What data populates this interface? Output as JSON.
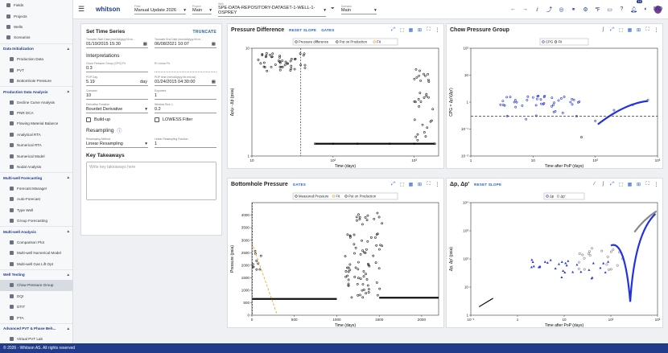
{
  "app": {
    "logo": "whitson",
    "footer": "© 2026 - Whitson AS. All rights reserved",
    "notifications": "16",
    "user_initials": "MO"
  },
  "topbar": {
    "field_label": "Field",
    "field_value": "Manual Update 2026",
    "project_label": "Project",
    "project_value": "Main",
    "well_label": "Well",
    "well_value": "SPE-DATA-REPOSITORY-DATASET-1-WELL-1-OSPREY",
    "scenario_label": "Scenario",
    "scenario_value": "Main"
  },
  "sidebar": {
    "top": [
      "Fields",
      "Projects",
      "Wells",
      "Scenarios"
    ],
    "sections": [
      {
        "title": "Data Initialization",
        "items": [
          "Production Data",
          "PVT",
          "Bottomhole Pressure"
        ]
      },
      {
        "title": "Production Data Analysis",
        "items": [
          "Decline Curve Analysis",
          "PNR DCA",
          "Flowing Material Balance",
          "Analytical RTA",
          "Numerical RTA",
          "Numerical Model",
          "Nodal Analysis"
        ]
      },
      {
        "title": "Multi-well Forecasting",
        "items": [
          "Forecast Manager",
          "Auto-Forecast",
          "Type Well",
          "Group Forecasting"
        ]
      },
      {
        "title": "Multi-well Analysis",
        "items": [
          "Comparison Plot",
          "Multi-well Numerical Model",
          "Multi-well Gas Lift Opt"
        ]
      },
      {
        "title": "Well Testing",
        "items": [
          "Chow Pressure Group",
          "DQI",
          "DTIT",
          "PTA"
        ]
      },
      {
        "title": "Advanced PVT & Phase Beh...",
        "items": [
          "Virtual PVT Lab"
        ]
      }
    ],
    "active": "Chow Pressure Group"
  },
  "settings": {
    "title": "Set Time Series",
    "truncate_label": "TRUNCATE",
    "trunc_start_label": "Truncate Start Date (mm/dd/yyyy hh:m...",
    "trunc_start": "01/19/2015 15:30",
    "trunc_end_label": "Truncate End Date (mm/dd/yyyy hh:m...",
    "trunc_end": "06/08/2021 10:07",
    "interp_title": "Interpretations",
    "cpg_label": "Chow Pressure Group (CPG) Fit",
    "cpg_value": "0.3",
    "r2_label": "R² Linear Fit",
    "r2_value": "",
    "pop_day_label": "POP Day",
    "pop_day_value": "5.19",
    "pop_day_unit": "day",
    "pop_time_label": "POP time (mm/dd/yyyy hh:mm:ss)",
    "pop_time_value": "01/24/2015 04:30:00",
    "constant_label": "Constant",
    "constant_value": "10",
    "exponent_label": "Exponent",
    "exponent_value": "1",
    "deriv_label": "Derivative Function",
    "deriv_value": "Bourdet Derivative",
    "window_label": "Window Size, L",
    "window_value": "0.2",
    "buildup_label": "Build-up",
    "lowess_label": "LOWESS Filter",
    "resampling_title": "Resampling",
    "resample_method_label": "Resampling Method",
    "resample_method_value": "Linear Resampling",
    "linear_frac_label": "Linear Resampling Fraction",
    "linear_frac_value": "1",
    "takeaways_title": "Key Takeaways",
    "takeaways_placeholder": "Write key takeaways here"
  },
  "charts": {
    "pd": {
      "title": "Pressure Difference",
      "links": [
        "RESET SLOPE",
        "GATES"
      ],
      "legend": [
        "Pressure difference",
        "Put on Production",
        "Fit"
      ],
      "ylabel": "Δp/μ - Δp̂ (psia)",
      "xlabel": "Time (days)"
    },
    "cpg": {
      "title": "Chow Pressure Group",
      "legend": [
        "CPG",
        "Fit"
      ],
      "ylabel": "CPG = Δp'/(Δp')",
      "xlabel": "Time after PoP (days)"
    },
    "bhp": {
      "title": "Bottomhole Pressure",
      "links": [
        "GATES"
      ],
      "legend": [
        "Measured Pressure",
        "Fit",
        "Put on Production"
      ],
      "ylabel": "Pressure (psia)",
      "xlabel": "Time (days)"
    },
    "dp": {
      "title": "Δp, Δp'",
      "links": [
        "RESET SLOPE"
      ],
      "legend": [
        "Δp",
        "Δp'"
      ],
      "ylabel": "Δp, Δp' (psia)",
      "xlabel": "Time after PoP (days)"
    }
  },
  "chart_data": [
    {
      "type": "scatter",
      "title": "Pressure Difference",
      "xscale": "log",
      "yscale": "log",
      "xlim": [
        10,
        2000
      ],
      "ylim": [
        1,
        10
      ],
      "series": [
        {
          "name": "Pressure difference",
          "x": [
            12,
            15,
            18,
            22,
            30,
            40,
            60,
            100,
            200,
            500,
            1000,
            1200,
            1500,
            1800
          ],
          "y": [
            7.8,
            8.5,
            8.9,
            8.2,
            7.6,
            7.0,
            1.3,
            1.3,
            1.3,
            1.3,
            1.3,
            5.0,
            3.5,
            1.3
          ]
        }
      ]
    },
    {
      "type": "scatter",
      "title": "Chow Pressure Group",
      "xscale": "log",
      "yscale": "log",
      "xlim": [
        1,
        1000
      ],
      "ylim": [
        0.01,
        100
      ],
      "series": [
        {
          "name": "CPG",
          "x": [
            3,
            5,
            8,
            10,
            15,
            20,
            30,
            40,
            50,
            60,
            100,
            200,
            400,
            700
          ],
          "y": [
            0.8,
            1.0,
            1.2,
            1.5,
            0.9,
            0.7,
            0.4,
            1.0,
            0.3,
            0.05,
            0.2,
            0.5,
            0.8,
            1.2
          ]
        },
        {
          "name": "Fit",
          "x": [
            1,
            1000
          ],
          "y": [
            0.3,
            0.3
          ]
        }
      ]
    },
    {
      "type": "scatter",
      "title": "Bottomhole Pressure",
      "xlim": [
        0,
        2200
      ],
      "ylim": [
        0,
        4500
      ],
      "series": [
        {
          "name": "Measured Pressure",
          "x": [
            0,
            100,
            200,
            500,
            1000,
            1100,
            1200,
            1300,
            1400,
            1500,
            1700,
            2000
          ],
          "y": [
            700,
            680,
            650,
            650,
            650,
            4000,
            3500,
            2500,
            1500,
            700,
            700,
            700
          ]
        }
      ]
    },
    {
      "type": "scatter",
      "title": "Δp, Δp'",
      "xscale": "log",
      "yscale": "log",
      "xlim": [
        0.1,
        1000
      ],
      "ylim": [
        1,
        10000
      ],
      "series": [
        {
          "name": "Δp",
          "x": [
            0.2,
            1,
            5,
            10,
            20,
            50,
            100,
            200,
            500,
            1000
          ],
          "y": [
            2,
            15,
            25,
            40,
            70,
            200,
            400,
            50,
            1500,
            3000
          ]
        },
        {
          "name": "Δp'",
          "x": [
            3,
            10,
            30,
            100,
            300,
            1000
          ],
          "y": [
            10,
            30,
            60,
            150,
            2000,
            4000
          ]
        }
      ]
    }
  ]
}
